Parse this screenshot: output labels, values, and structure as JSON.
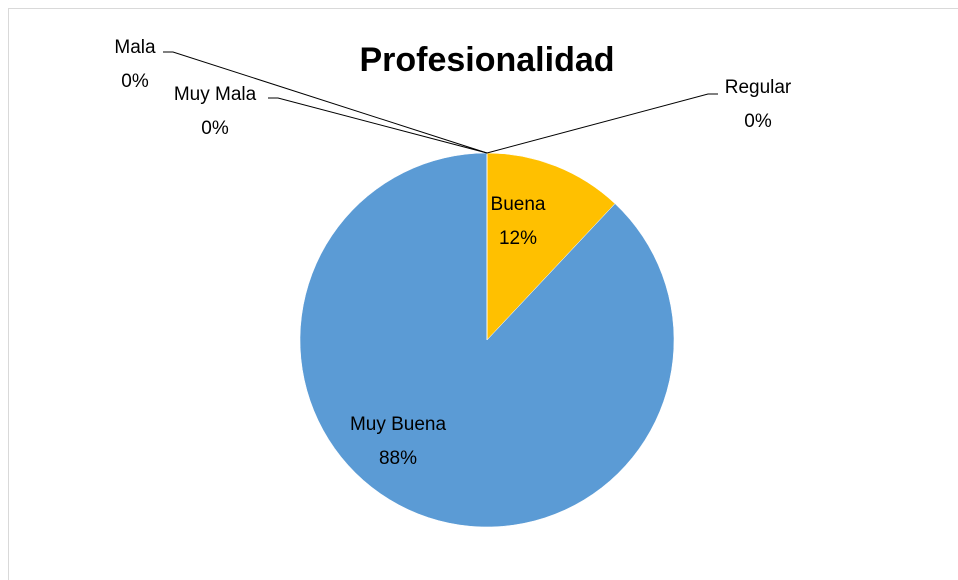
{
  "chart_data": {
    "type": "pie",
    "title": "Profesionalidad",
    "categories": [
      "Regular",
      "Buena",
      "Muy Buena",
      "Muy Mala",
      "Mala"
    ],
    "values": [
      0,
      12,
      88,
      0,
      0
    ],
    "value_labels": [
      "0%",
      "12%",
      "88%",
      "0%",
      "0%"
    ],
    "colors": [
      "#a5a5a5",
      "#ffc000",
      "#5b9bd5",
      "#4472c4",
      "#ed7d31"
    ]
  }
}
